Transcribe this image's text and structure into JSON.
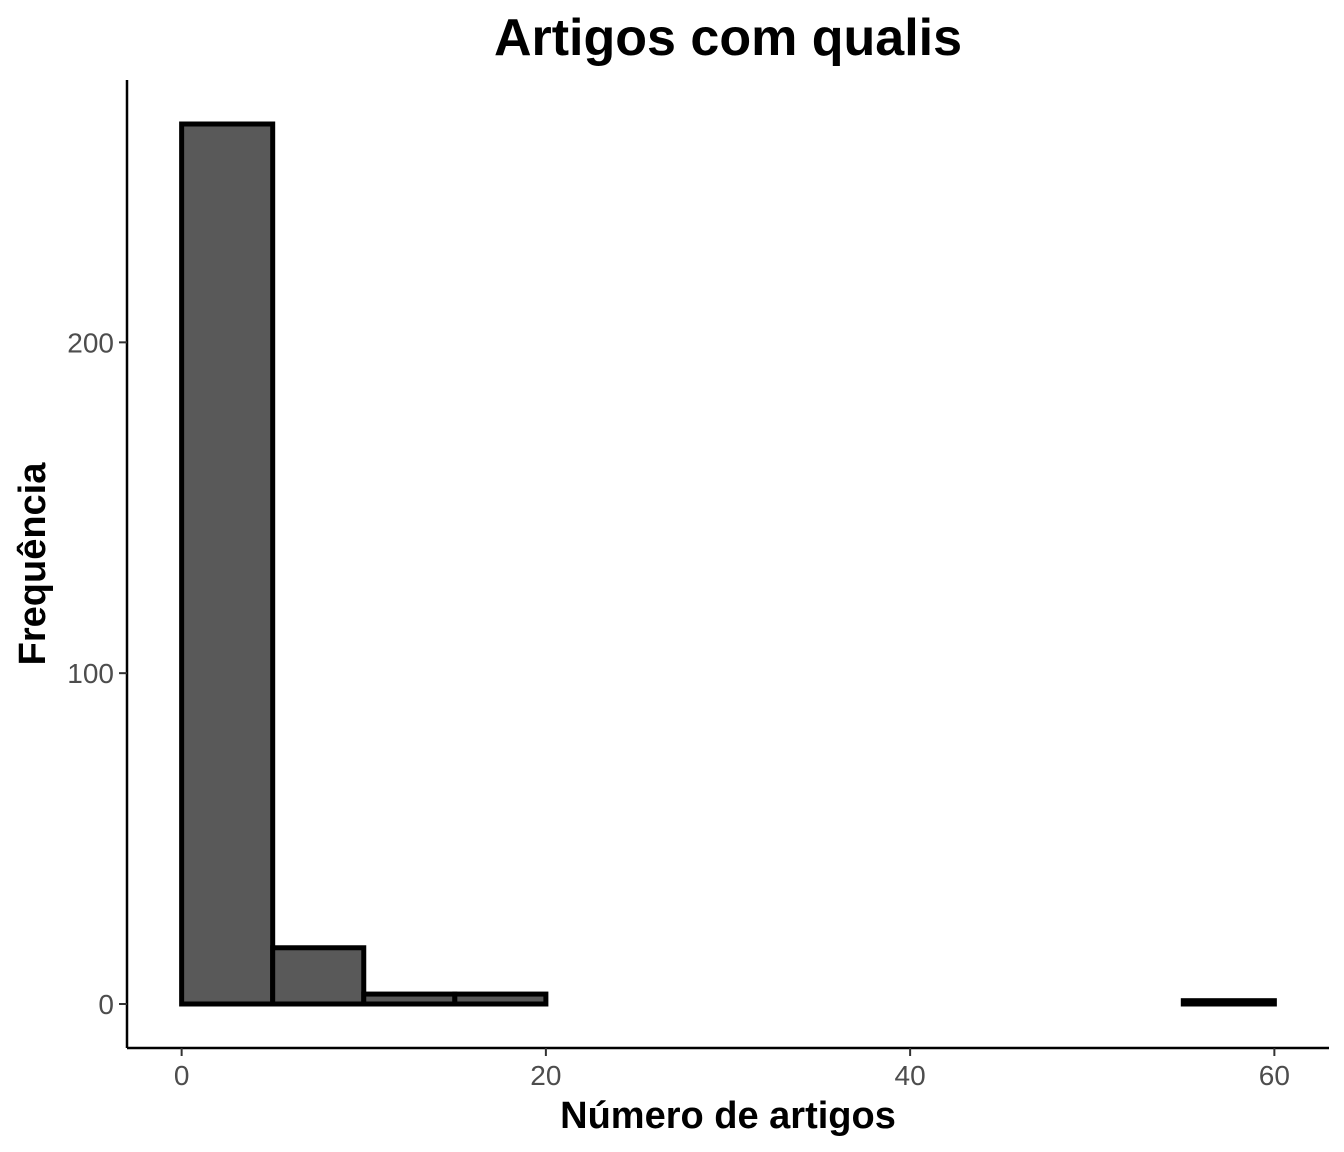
{
  "chart_data": {
    "type": "bar",
    "title": "Artigos com qualis",
    "xlabel": "Número de artigos",
    "ylabel": "Frequência",
    "bins": [
      {
        "start": 0,
        "end": 5,
        "count": 266
      },
      {
        "start": 5,
        "end": 10,
        "count": 17
      },
      {
        "start": 10,
        "end": 15,
        "count": 3
      },
      {
        "start": 15,
        "end": 20,
        "count": 3
      },
      {
        "start": 20,
        "end": 25,
        "count": 0
      },
      {
        "start": 25,
        "end": 30,
        "count": 0
      },
      {
        "start": 30,
        "end": 35,
        "count": 0
      },
      {
        "start": 35,
        "end": 40,
        "count": 0
      },
      {
        "start": 40,
        "end": 45,
        "count": 0
      },
      {
        "start": 45,
        "end": 50,
        "count": 0
      },
      {
        "start": 50,
        "end": 55,
        "count": 0
      },
      {
        "start": 55,
        "end": 60,
        "count": 1
      }
    ],
    "x_ticks": [
      0,
      20,
      40,
      60
    ],
    "y_ticks": [
      0,
      100,
      200
    ],
    "xlim": [
      -3,
      63
    ],
    "ylim": [
      -13.3,
      279.3
    ],
    "grid": false,
    "bar_fill": "#595959",
    "bar_outline": "#000000"
  }
}
